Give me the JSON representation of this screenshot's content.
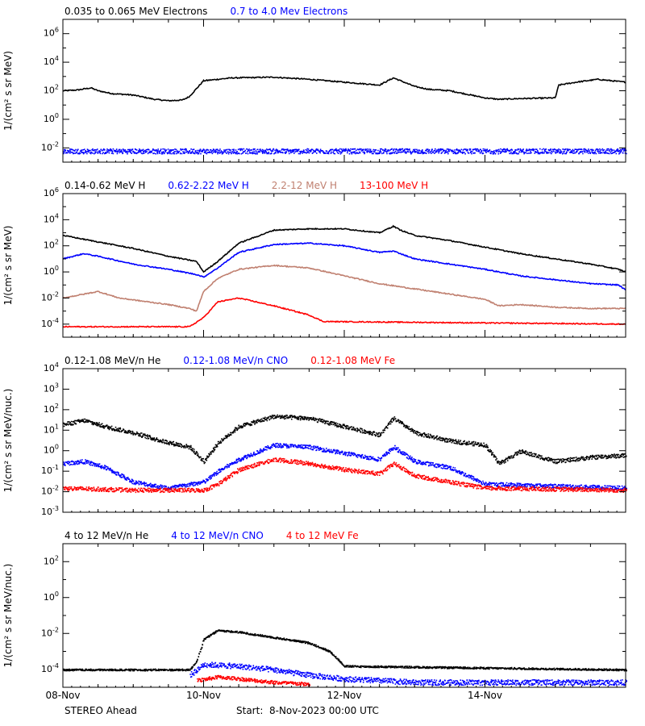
{
  "chart_data": [
    {
      "type": "line",
      "legend": [
        {
          "name": "0.035 to 0.065 MeV Electrons",
          "color": "#000000"
        },
        {
          "name": "0.7 to 4.0 Mev Electrons",
          "color": "#0000ff"
        }
      ],
      "ylabel": "1/(cm² s sr MeV)",
      "yscale": "log",
      "ylim_exp": [
        -3,
        7
      ],
      "ytick_exps": [
        -2,
        0,
        2,
        4,
        6
      ],
      "series": [
        {
          "name": "0.035 to 0.065 MeV Electrons",
          "color": "#000000",
          "style": "line",
          "x": [
            0.0,
            0.2,
            0.4,
            0.5,
            0.7,
            1.0,
            1.3,
            1.5,
            1.7,
            1.8,
            2.0,
            2.4,
            3.0,
            3.5,
            4.0,
            4.5,
            4.7,
            4.8,
            5.0,
            5.2,
            5.5,
            6.0,
            6.2,
            6.5,
            7.0,
            7.05,
            7.3,
            7.6,
            8.0
          ],
          "y_exp": [
            2.0,
            2.05,
            2.2,
            2.0,
            1.8,
            1.7,
            1.4,
            1.3,
            1.35,
            1.6,
            2.7,
            2.9,
            2.95,
            2.8,
            2.6,
            2.4,
            2.9,
            2.7,
            2.3,
            2.1,
            2.0,
            1.5,
            1.4,
            1.45,
            1.5,
            2.4,
            2.6,
            2.8,
            2.6
          ]
        },
        {
          "name": "0.7 to 4.0 Mev Electrons",
          "color": "#0000ff",
          "style": "scatter",
          "x": [
            0,
            8
          ],
          "y_exp": [
            -2.2,
            -2.2
          ],
          "noise": 0.35
        }
      ]
    },
    {
      "type": "line",
      "legend": [
        {
          "name": "0.14-0.62 MeV H",
          "color": "#000000"
        },
        {
          "name": "0.62-2.22 MeV H",
          "color": "#0000ff"
        },
        {
          "name": "2.2-12 MeV H",
          "color": "#c08070"
        },
        {
          "name": "13-100 MeV H",
          "color": "#ff0000"
        }
      ],
      "ylabel": "1/(cm² s sr MeV)",
      "yscale": "log",
      "ylim_exp": [
        -5,
        6
      ],
      "ytick_exps": [
        -4,
        -2,
        0,
        2,
        4,
        6
      ],
      "series": [
        {
          "name": "0.14-0.62 MeV H",
          "color": "#000000",
          "style": "line",
          "x": [
            0.0,
            0.3,
            0.5,
            1.0,
            1.5,
            1.9,
            2.0,
            2.2,
            2.5,
            3.0,
            3.5,
            4.0,
            4.5,
            4.7,
            4.8,
            5.0,
            5.5,
            6.0,
            6.5,
            7.0,
            7.5,
            7.9,
            8.0
          ],
          "y_exp": [
            2.8,
            2.5,
            2.3,
            1.8,
            1.2,
            0.8,
            0.0,
            0.8,
            2.2,
            3.2,
            3.3,
            3.3,
            3.0,
            3.5,
            3.2,
            2.8,
            2.4,
            1.9,
            1.4,
            1.0,
            0.6,
            0.2,
            0.0
          ]
        },
        {
          "name": "0.62-2.22 MeV H",
          "color": "#0000ff",
          "style": "line",
          "x": [
            0.0,
            0.3,
            0.5,
            1.0,
            1.5,
            1.9,
            2.0,
            2.2,
            2.5,
            3.0,
            3.5,
            4.0,
            4.5,
            4.7,
            4.8,
            5.0,
            5.5,
            6.0,
            6.5,
            7.0,
            7.5,
            7.9,
            8.0
          ],
          "y_exp": [
            1.0,
            1.4,
            1.2,
            0.6,
            0.2,
            -0.2,
            -0.4,
            0.3,
            1.5,
            2.1,
            2.2,
            2.0,
            1.5,
            1.6,
            1.4,
            1.0,
            0.6,
            0.2,
            -0.3,
            -0.6,
            -0.9,
            -1.0,
            -1.4
          ]
        },
        {
          "name": "2.2-12 MeV H",
          "color": "#c08070",
          "style": "line",
          "x": [
            0.0,
            0.2,
            0.5,
            0.8,
            1.5,
            1.8,
            1.9,
            2.0,
            2.2,
            2.5,
            3.0,
            3.5,
            4.0,
            4.5,
            5.0,
            5.5,
            6.0,
            6.2,
            6.5,
            7.0,
            7.5,
            8.0
          ],
          "y_exp": [
            -2.0,
            -1.8,
            -1.5,
            -2.0,
            -2.5,
            -2.8,
            -3.0,
            -1.5,
            -0.5,
            0.2,
            0.5,
            0.3,
            -0.3,
            -0.9,
            -1.3,
            -1.7,
            -2.1,
            -2.6,
            -2.5,
            -2.7,
            -2.8,
            -2.8
          ]
        },
        {
          "name": "13-100 MeV H",
          "color": "#ff0000",
          "style": "line",
          "x": [
            0.0,
            1.8,
            2.0,
            2.2,
            2.5,
            3.0,
            3.5,
            3.7,
            8.0
          ],
          "y_exp": [
            -4.2,
            -4.2,
            -3.5,
            -2.3,
            -2.0,
            -2.6,
            -3.3,
            -3.8,
            -4.0
          ]
        }
      ]
    },
    {
      "type": "scatter",
      "legend": [
        {
          "name": "0.12-1.08 MeV/n He",
          "color": "#000000"
        },
        {
          "name": "0.12-1.08 MeV/n CNO",
          "color": "#0000ff"
        },
        {
          "name": "0.12-1.08 MeV Fe",
          "color": "#ff0000"
        }
      ],
      "ylabel": "1/(cm² s sr MeV/nuc.)",
      "yscale": "log",
      "ylim_exp": [
        -3,
        4
      ],
      "ytick_exps": [
        -3,
        -2,
        -1,
        0,
        1,
        2,
        3,
        4
      ],
      "series": [
        {
          "name": "0.12-1.08 MeV/n He",
          "color": "#000000",
          "style": "scatter",
          "x": [
            0.0,
            0.3,
            0.6,
            1.0,
            1.4,
            1.8,
            2.0,
            2.2,
            2.5,
            3.0,
            3.5,
            4.0,
            4.5,
            4.7,
            5.0,
            5.5,
            6.0,
            6.2,
            6.5,
            7.0,
            7.5,
            8.0
          ],
          "y_exp": [
            1.3,
            1.5,
            1.2,
            0.9,
            0.5,
            0.2,
            -0.5,
            0.4,
            1.2,
            1.7,
            1.6,
            1.2,
            0.8,
            1.6,
            0.9,
            0.5,
            0.3,
            -0.6,
            0.0,
            -0.5,
            -0.3,
            -0.2
          ],
          "noise": 0.2
        },
        {
          "name": "0.12-1.08 MeV/n CNO",
          "color": "#0000ff",
          "style": "scatter",
          "x": [
            0.0,
            0.3,
            0.6,
            1.0,
            1.5,
            2.0,
            2.2,
            2.5,
            3.0,
            3.5,
            4.0,
            4.5,
            4.7,
            5.0,
            5.5,
            6.0,
            8.0
          ],
          "y_exp": [
            -0.6,
            -0.5,
            -0.8,
            -1.5,
            -1.8,
            -1.5,
            -1.0,
            -0.4,
            0.3,
            0.2,
            -0.1,
            -0.4,
            0.2,
            -0.5,
            -0.8,
            -1.6,
            -1.8
          ],
          "noise": 0.2
        },
        {
          "name": "0.12-1.08 MeV Fe",
          "color": "#ff0000",
          "style": "scatter",
          "x": [
            0.0,
            1.0,
            2.0,
            2.2,
            2.5,
            3.0,
            3.5,
            4.0,
            4.5,
            4.7,
            5.0,
            5.5,
            6.0,
            8.0
          ],
          "y_exp": [
            -1.8,
            -1.9,
            -1.9,
            -1.6,
            -0.9,
            -0.4,
            -0.6,
            -0.9,
            -1.1,
            -0.6,
            -1.2,
            -1.5,
            -1.8,
            -1.9
          ],
          "noise": 0.2
        }
      ]
    },
    {
      "type": "scatter",
      "legend": [
        {
          "name": "4 to 12 MeV/n He",
          "color": "#000000"
        },
        {
          "name": "4 to 12 MeV/n CNO",
          "color": "#0000ff"
        },
        {
          "name": "4 to 12 MeV Fe",
          "color": "#ff0000"
        }
      ],
      "ylabel": "1/(cm² s sr MeV/nuc.)",
      "yscale": "log",
      "ylim_exp": [
        -5,
        3
      ],
      "ytick_exps": [
        -4,
        -2,
        0,
        2
      ],
      "series": [
        {
          "name": "4 to 12 MeV/n He",
          "color": "#000000",
          "style": "scatter",
          "x": [
            0.0,
            1.8,
            1.9,
            2.0,
            2.2,
            2.5,
            3.0,
            3.5,
            3.8,
            4.0,
            8.0
          ],
          "y_exp": [
            -4.0,
            -4.0,
            -3.5,
            -2.3,
            -1.8,
            -1.9,
            -2.2,
            -2.5,
            -3.0,
            -3.8,
            -4.0
          ],
          "noise": 0.1
        },
        {
          "name": "4 to 12 MeV/n CNO",
          "color": "#0000ff",
          "style": "scatter",
          "x": [
            1.8,
            2.0,
            2.5,
            3.0,
            3.5,
            4.0,
            5.0,
            8.0
          ],
          "y_exp": [
            -4.3,
            -3.7,
            -3.8,
            -4.0,
            -4.3,
            -4.5,
            -4.7,
            -4.7
          ],
          "noise": 0.3
        },
        {
          "name": "4 to 12 MeV Fe",
          "color": "#ff0000",
          "style": "scatter",
          "x": [
            1.9,
            2.2,
            2.5,
            3.0,
            3.5
          ],
          "y_exp": [
            -4.6,
            -4.4,
            -4.5,
            -4.7,
            -4.8
          ],
          "noise": 0.2
        }
      ]
    }
  ],
  "x_axis": {
    "xlim": [
      0,
      8
    ],
    "major_ticks": [
      0,
      2,
      4,
      6,
      8
    ],
    "labels": [
      {
        "x": 0,
        "text": "08-Nov"
      },
      {
        "x": 2,
        "text": "10-Nov"
      },
      {
        "x": 4,
        "text": "12-Nov"
      },
      {
        "x": 6,
        "text": "14-Nov"
      }
    ]
  },
  "footer": {
    "spacecraft": "STEREO Ahead",
    "start": "Start:  8-Nov-2023 00:00 UTC"
  }
}
